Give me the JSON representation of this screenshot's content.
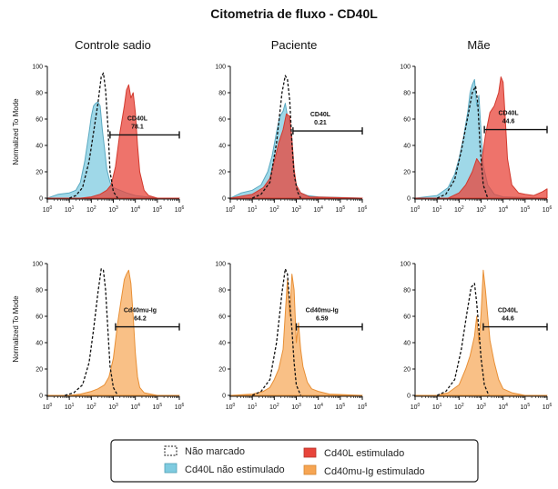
{
  "title": "Citometria de fluxo - CD40L",
  "ylabel": "Normalized To Mode",
  "columns": [
    "Controle sadio",
    "Paciente",
    "Mãe"
  ],
  "colors": {
    "unstained": "#111111",
    "cd40l_unstim": "#7fcbe0",
    "cd40l_stim": "#e8443a",
    "cd40mu_stim": "#f6a553"
  },
  "legend": {
    "items": [
      {
        "key": "unstained",
        "label": "Não marcado"
      },
      {
        "key": "cd40l_stim",
        "label": "Cd40L estimulado"
      },
      {
        "key": "cd40l_unstim",
        "label": "Cd40L não estimulado"
      },
      {
        "key": "cd40mu_stim",
        "label": "Cd40mu-Ig estimulado"
      }
    ]
  },
  "chart_data": {
    "type": "area",
    "title": "Citometria de fluxo - CD40L",
    "ylabel": "Normalized To Mode",
    "x_scale": "log",
    "xlim_decades": [
      0,
      6
    ],
    "ylim": [
      0,
      100
    ],
    "yticks": [
      "0",
      "20",
      "40",
      "60",
      "80",
      "100"
    ],
    "xticks": [
      "10^0",
      "10^1",
      "10^2",
      "10^3",
      "10^4",
      "10^5",
      "10^6"
    ],
    "panels": [
      {
        "row": 0,
        "col": 0,
        "gate": {
          "label": "CD40L",
          "value": "78.1",
          "from_decade": 2.85,
          "to_decade": 6.0,
          "y": 48
        },
        "series": [
          {
            "key": "cd40l_unstim",
            "fill": true,
            "x": [
              0.0,
              0.5,
              1.0,
              1.3,
              1.5,
              1.7,
              1.9,
              2.0,
              2.1,
              2.2,
              2.3,
              2.4,
              2.5,
              2.6,
              2.7,
              2.85,
              3.0,
              3.3,
              3.6,
              4.0,
              5.0,
              6.0
            ],
            "y": [
              0,
              3,
              4,
              6,
              12,
              28,
              50,
              62,
              70,
              72,
              73,
              70,
              52,
              38,
              22,
              12,
              8,
              6,
              4,
              2,
              0,
              0
            ]
          },
          {
            "key": "cd40l_stim",
            "fill": true,
            "x": [
              0.0,
              1.5,
              2.0,
              2.4,
              2.7,
              2.9,
              3.1,
              3.3,
              3.5,
              3.6,
              3.7,
              3.8,
              3.9,
              4.0,
              4.1,
              4.2,
              4.4,
              4.6,
              5.0,
              6.0
            ],
            "y": [
              0,
              0,
              1,
              3,
              6,
              10,
              24,
              50,
              70,
              82,
              86,
              76,
              80,
              65,
              40,
              20,
              6,
              2,
              0,
              0
            ]
          },
          {
            "key": "unstained",
            "fill": false,
            "dashed": true,
            "x": [
              1.0,
              1.3,
              1.6,
              1.9,
              2.1,
              2.3,
              2.45,
              2.55,
              2.65,
              2.75,
              2.85,
              3.0,
              3.2
            ],
            "y": [
              0,
              2,
              8,
              28,
              50,
              72,
              92,
              95,
              82,
              55,
              20,
              5,
              0
            ]
          }
        ]
      },
      {
        "row": 0,
        "col": 1,
        "gate": {
          "label": "CD40L",
          "value": "0.21",
          "from_decade": 2.85,
          "to_decade": 6.0,
          "y": 51
        },
        "series": [
          {
            "key": "cd40l_unstim",
            "fill": true,
            "x": [
              0.0,
              0.5,
              1.0,
              1.4,
              1.7,
              1.9,
              2.1,
              2.25,
              2.4,
              2.5,
              2.6,
              2.7,
              2.8,
              2.9,
              3.0,
              3.2,
              3.5,
              4.0,
              6.0
            ],
            "y": [
              0,
              4,
              6,
              10,
              20,
              32,
              50,
              62,
              66,
              72,
              62,
              58,
              40,
              20,
              10,
              4,
              2,
              1,
              0
            ]
          },
          {
            "key": "cd40l_stim",
            "fill": true,
            "x": [
              0.0,
              1.0,
              1.5,
              1.8,
              2.0,
              2.2,
              2.4,
              2.55,
              2.7,
              2.8,
              2.9,
              3.0,
              3.2,
              3.6,
              6.0
            ],
            "y": [
              0,
              3,
              8,
              15,
              28,
              42,
              52,
              64,
              62,
              45,
              22,
              10,
              4,
              1,
              0
            ]
          },
          {
            "key": "unstained",
            "fill": false,
            "dashed": true,
            "x": [
              1.0,
              1.4,
              1.8,
              2.1,
              2.35,
              2.5,
              2.6,
              2.7,
              2.8,
              2.9,
              3.05,
              3.2
            ],
            "y": [
              0,
              3,
              12,
              42,
              80,
              93,
              90,
              74,
              42,
              18,
              5,
              0
            ]
          }
        ]
      },
      {
        "row": 0,
        "col": 2,
        "gate": {
          "label": "CD40L",
          "value": "44.6",
          "from_decade": 3.15,
          "to_decade": 6.0,
          "y": 52
        },
        "series": [
          {
            "key": "cd40l_unstim",
            "fill": true,
            "x": [
              0.0,
              1.0,
              1.5,
              1.8,
              2.0,
              2.2,
              2.4,
              2.5,
              2.6,
              2.7,
              2.75,
              2.8,
              2.9,
              3.0,
              3.1,
              3.3,
              3.6,
              4.0,
              6.0
            ],
            "y": [
              0,
              2,
              8,
              18,
              30,
              46,
              66,
              80,
              86,
              90,
              80,
              70,
              78,
              50,
              25,
              10,
              3,
              1,
              0
            ]
          },
          {
            "key": "cd40l_stim",
            "fill": true,
            "x": [
              0.0,
              1.5,
              2.0,
              2.3,
              2.6,
              2.8,
              3.0,
              3.2,
              3.4,
              3.6,
              3.8,
              3.9,
              4.0,
              4.1,
              4.2,
              4.4,
              4.7,
              5.0,
              5.4,
              5.8,
              6.0
            ],
            "y": [
              0,
              0,
              4,
              10,
              20,
              30,
              25,
              48,
              65,
              70,
              80,
              92,
              88,
              60,
              30,
              10,
              4,
              3,
              2,
              5,
              7
            ]
          },
          {
            "key": "unstained",
            "fill": false,
            "dashed": true,
            "x": [
              1.0,
              1.4,
              1.8,
              2.1,
              2.4,
              2.6,
              2.75,
              2.85,
              2.95,
              3.1,
              3.3
            ],
            "y": [
              0,
              3,
              14,
              36,
              62,
              80,
              85,
              72,
              40,
              10,
              0
            ]
          }
        ]
      },
      {
        "row": 1,
        "col": 0,
        "gate": {
          "label": "Cd40mu-Ig",
          "value": "64.2",
          "from_decade": 3.1,
          "to_decade": 6.0,
          "y": 52
        },
        "series": [
          {
            "key": "cd40mu_stim",
            "fill": true,
            "x": [
              0.0,
              1.0,
              1.5,
              2.0,
              2.3,
              2.6,
              2.8,
              3.0,
              3.2,
              3.35,
              3.5,
              3.6,
              3.7,
              3.8,
              3.9,
              4.0,
              4.1,
              4.2,
              4.4,
              4.7,
              5.0,
              6.0
            ],
            "y": [
              0,
              0,
              1,
              3,
              5,
              8,
              14,
              28,
              55,
              72,
              88,
              92,
              95,
              85,
              60,
              32,
              14,
              6,
              2,
              1,
              0,
              0
            ]
          },
          {
            "key": "unstained",
            "fill": false,
            "dashed": true,
            "x": [
              0.8,
              1.2,
              1.6,
              1.9,
              2.1,
              2.3,
              2.45,
              2.55,
              2.65,
              2.75,
              2.85,
              3.0,
              3.2
            ],
            "y": [
              0,
              2,
              8,
              25,
              50,
              78,
              96,
              95,
              80,
              50,
              22,
              6,
              0
            ]
          }
        ]
      },
      {
        "row": 1,
        "col": 1,
        "gate": {
          "label": "Cd40mu-Ig",
          "value": "6.59",
          "from_decade": 3.0,
          "to_decade": 6.0,
          "y": 52
        },
        "series": [
          {
            "key": "cd40mu_stim",
            "fill": true,
            "x": [
              0.0,
              1.0,
              1.5,
              1.8,
              2.0,
              2.2,
              2.4,
              2.5,
              2.6,
              2.7,
              2.8,
              2.9,
              3.0,
              3.1,
              3.2,
              3.3,
              3.5,
              3.7,
              4.0,
              4.5,
              6.0
            ],
            "y": [
              0,
              1,
              3,
              6,
              12,
              20,
              35,
              62,
              88,
              60,
              92,
              80,
              40,
              55,
              35,
              22,
              10,
              5,
              3,
              1,
              0
            ]
          },
          {
            "key": "unstained",
            "fill": false,
            "dashed": true,
            "x": [
              1.0,
              1.4,
              1.8,
              2.1,
              2.35,
              2.5,
              2.6,
              2.7,
              2.8,
              2.9,
              3.0,
              3.2
            ],
            "y": [
              0,
              3,
              12,
              40,
              78,
              96,
              92,
              70,
              50,
              25,
              8,
              0
            ]
          }
        ]
      },
      {
        "row": 1,
        "col": 2,
        "gate": {
          "label": "CD40L",
          "value": "44.6",
          "from_decade": 3.1,
          "to_decade": 6.0,
          "y": 52
        },
        "series": [
          {
            "key": "cd40mu_stim",
            "fill": true,
            "x": [
              0.0,
              1.0,
              1.5,
              2.0,
              2.3,
              2.5,
              2.7,
              2.8,
              2.9,
              3.0,
              3.1,
              3.2,
              3.3,
              3.4,
              3.6,
              3.8,
              4.0,
              4.4,
              5.0,
              6.0
            ],
            "y": [
              0,
              0,
              2,
              8,
              20,
              30,
              45,
              60,
              40,
              62,
              95,
              80,
              60,
              42,
              25,
              12,
              5,
              2,
              0,
              0
            ]
          },
          {
            "key": "unstained",
            "fill": false,
            "dashed": true,
            "x": [
              1.0,
              1.4,
              1.8,
              2.1,
              2.35,
              2.55,
              2.7,
              2.8,
              2.9,
              3.0,
              3.15,
              3.35
            ],
            "y": [
              0,
              3,
              12,
              35,
              62,
              82,
              85,
              70,
              50,
              28,
              8,
              0
            ]
          }
        ]
      }
    ]
  }
}
